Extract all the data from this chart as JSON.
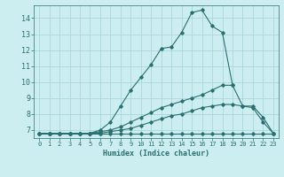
{
  "xlabel": "Humidex (Indice chaleur)",
  "ylabel": "",
  "bg_color": "#cceef0",
  "grid_color": "#aad8dc",
  "line_color": "#2a7070",
  "xlim": [
    -0.5,
    23.5
  ],
  "ylim": [
    6.5,
    14.8
  ],
  "xticks": [
    0,
    1,
    2,
    3,
    4,
    5,
    6,
    7,
    8,
    9,
    10,
    11,
    12,
    13,
    14,
    15,
    16,
    17,
    18,
    19,
    20,
    21,
    22,
    23
  ],
  "yticks": [
    7,
    8,
    9,
    10,
    11,
    12,
    13,
    14
  ],
  "series": [
    {
      "x": [
        0,
        1,
        2,
        3,
        4,
        5,
        6,
        7,
        8,
        9,
        10,
        11,
        12,
        13,
        14,
        15,
        16,
        17,
        18,
        19,
        20,
        21,
        22,
        23
      ],
      "y": [
        6.8,
        6.8,
        6.8,
        6.8,
        6.8,
        6.8,
        7.0,
        7.5,
        8.5,
        9.5,
        10.3,
        11.1,
        12.1,
        12.2,
        13.1,
        14.35,
        14.5,
        13.5,
        13.1,
        9.8,
        null,
        null,
        null,
        null
      ]
    },
    {
      "x": [
        0,
        1,
        2,
        3,
        4,
        5,
        6,
        7,
        8,
        9,
        10,
        11,
        12,
        13,
        14,
        15,
        16,
        17,
        18,
        19,
        20,
        21,
        22,
        23
      ],
      "y": [
        6.8,
        6.8,
        6.8,
        6.8,
        6.8,
        6.8,
        6.9,
        7.0,
        7.2,
        7.5,
        7.8,
        8.1,
        8.4,
        8.6,
        8.8,
        9.0,
        9.2,
        9.5,
        9.8,
        9.8,
        8.5,
        8.5,
        7.8,
        6.8
      ]
    },
    {
      "x": [
        0,
        1,
        2,
        3,
        4,
        5,
        6,
        7,
        8,
        9,
        10,
        11,
        12,
        13,
        14,
        15,
        16,
        17,
        18,
        19,
        20,
        21,
        22,
        23
      ],
      "y": [
        6.8,
        6.8,
        6.8,
        6.8,
        6.8,
        6.8,
        6.8,
        6.9,
        7.0,
        7.1,
        7.3,
        7.5,
        7.7,
        7.9,
        8.0,
        8.2,
        8.4,
        8.5,
        8.6,
        8.6,
        8.5,
        8.4,
        7.5,
        6.8
      ]
    },
    {
      "x": [
        0,
        1,
        2,
        3,
        4,
        5,
        6,
        7,
        8,
        9,
        10,
        11,
        12,
        13,
        14,
        15,
        16,
        17,
        18,
        19,
        20,
        21,
        22,
        23
      ],
      "y": [
        6.8,
        6.8,
        6.8,
        6.8,
        6.8,
        6.8,
        6.8,
        6.8,
        6.8,
        6.8,
        6.8,
        6.8,
        6.8,
        6.8,
        6.8,
        6.8,
        6.8,
        6.8,
        6.8,
        6.8,
        6.8,
        6.8,
        6.8,
        6.8
      ]
    }
  ]
}
